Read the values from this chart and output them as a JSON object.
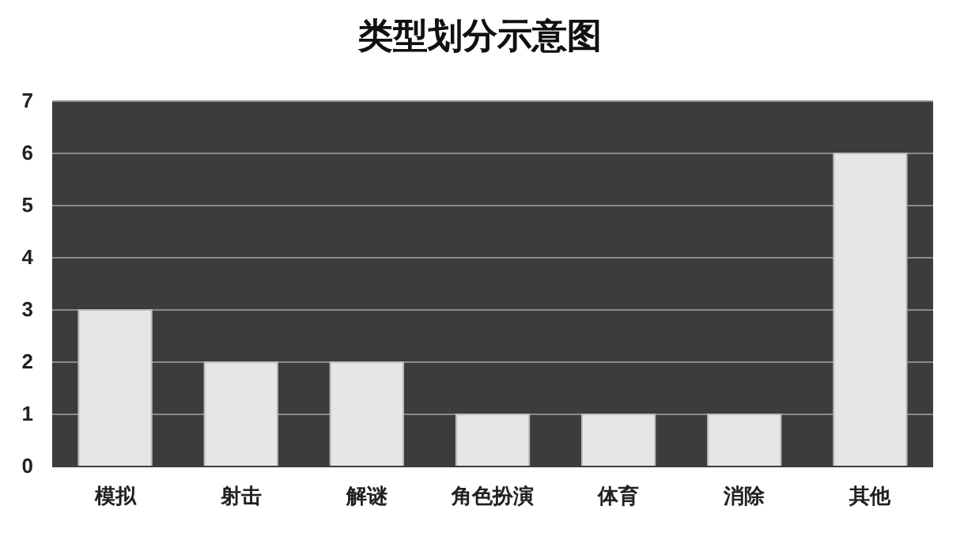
{
  "chart_data": {
    "type": "bar",
    "title": "类型划分示意图",
    "categories": [
      "模拟",
      "射击",
      "解谜",
      "角色扮演",
      "体育",
      "消除",
      "其他"
    ],
    "values": [
      3,
      2,
      2,
      1,
      1,
      1,
      6
    ],
    "color": "#e6e6e6",
    "ylim": [
      0,
      7
    ],
    "yticks": [
      0,
      1,
      2,
      3,
      4,
      5,
      6,
      7
    ],
    "grid": "y"
  }
}
